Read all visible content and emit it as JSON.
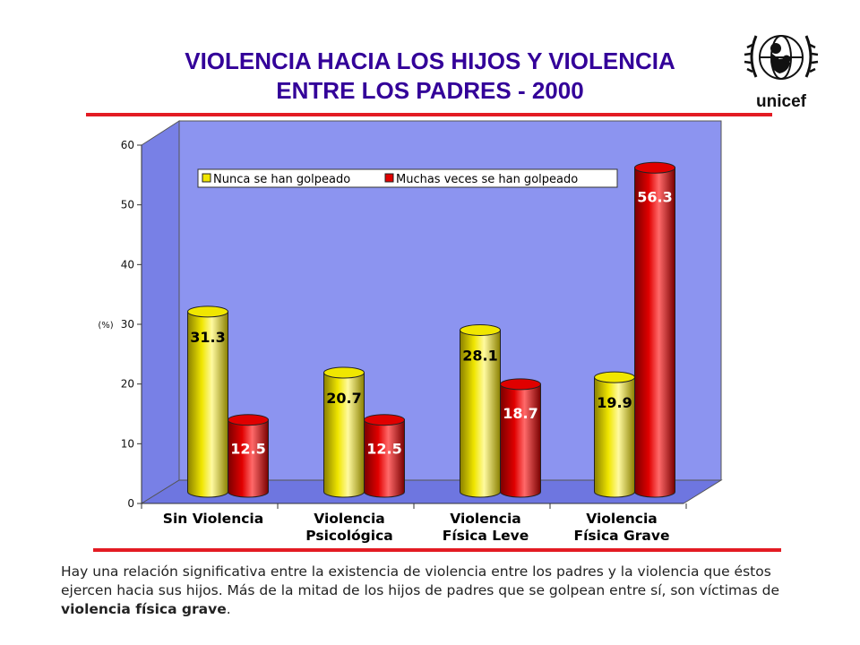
{
  "page": {
    "title_line1": "VIOLENCIA HACIA LOS HIJOS Y VIOLENCIA",
    "title_line2": "ENTRE LOS PADRES - 2000",
    "logo_text": "unicef",
    "note_part1": "Hay una relación significativa entre la existencia de violencia entre los padres y la violencia que éstos ejercen hacia sus hijos. Más de la mitad de los hijos de padres que se golpean entre sí, son víctimas de ",
    "note_bold": "violencia física grave",
    "note_end": "."
  },
  "colors": {
    "title": "#330099",
    "rule": "#e31b23",
    "wall": "#8c94f0",
    "series1": "#f0e600",
    "series2": "#e00000"
  },
  "chart_data": {
    "type": "bar",
    "categories": [
      [
        "Sin Violencia"
      ],
      [
        "Violencia",
        "Psicológica"
      ],
      [
        "Violencia",
        "Física Leve"
      ],
      [
        "Violencia",
        "Física Grave"
      ]
    ],
    "series": [
      {
        "name": "Nunca se han golpeado",
        "values": [
          31.3,
          20.7,
          28.1,
          19.9
        ]
      },
      {
        "name": "Muchas veces se han golpeado",
        "values": [
          12.5,
          12.5,
          18.7,
          56.3
        ]
      }
    ],
    "ylabel": "(%)",
    "ylim": [
      0,
      60
    ],
    "yticks": [
      0,
      10,
      20,
      30,
      40,
      50,
      60
    ],
    "legend": "top",
    "grid": false,
    "style": "3d-cylinder"
  }
}
